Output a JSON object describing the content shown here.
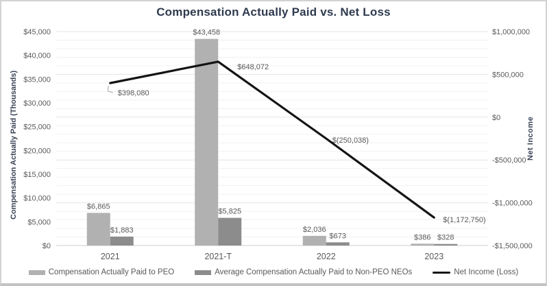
{
  "chart_data": {
    "type": "combo-bar-line",
    "title": "Compensation Actually Paid vs. Net Loss",
    "categories": [
      "2021",
      "2021-T",
      "2022",
      "2023"
    ],
    "series": [
      {
        "name": "Compensation Actually Paid to PEO",
        "type": "bar",
        "axis": "left",
        "color": "#b1b1b1",
        "values": [
          6865,
          43458,
          2036,
          386
        ],
        "labels": [
          "$6,865",
          "$43,458",
          "$2,036",
          "$386"
        ]
      },
      {
        "name": "Average Compensation Actually Paid to Non-PEO NEOs",
        "type": "bar",
        "axis": "left",
        "color": "#8c8c8c",
        "values": [
          1883,
          5825,
          673,
          328
        ],
        "labels": [
          "$1,883",
          "$5,825",
          "$673",
          "$328"
        ]
      },
      {
        "name": "Net Income (Loss)",
        "type": "line",
        "axis": "right",
        "color": "#141414",
        "values": [
          398080,
          648072,
          -250038,
          -1172750
        ],
        "labels": [
          "$398,080",
          "$648,072",
          "$(250,038)",
          "$(1,172,750)"
        ]
      }
    ],
    "left_axis": {
      "title": "Compensation Actually Paid (Thousands)",
      "min": 0,
      "max": 45000,
      "major_unit": 5000,
      "tick_labels": [
        "$0",
        "$5,000",
        "$10,000",
        "$15,000",
        "$20,000",
        "$25,000",
        "$30,000",
        "$35,000",
        "$40,000",
        "$45,000"
      ]
    },
    "right_axis": {
      "title": "Net  Income",
      "min": -1500000,
      "max": 1000000,
      "major_unit": 500000,
      "minor_unit": 100000,
      "tick_labels": [
        "-$1,500,000",
        "-$1,000,000",
        "-$500,000",
        "$0",
        "$500,000",
        "$1,000,000"
      ]
    },
    "legend_position": "bottom",
    "grid": "minor horizontal gridlines on",
    "colors": {
      "title_text": "#2e3a4e",
      "tick_text": "#595959",
      "data_label_text": "#595959",
      "gridline_minor": "#f1f1f1",
      "gridline_major": "#e4e4e4",
      "axis_line": "#d6d6d6"
    }
  }
}
